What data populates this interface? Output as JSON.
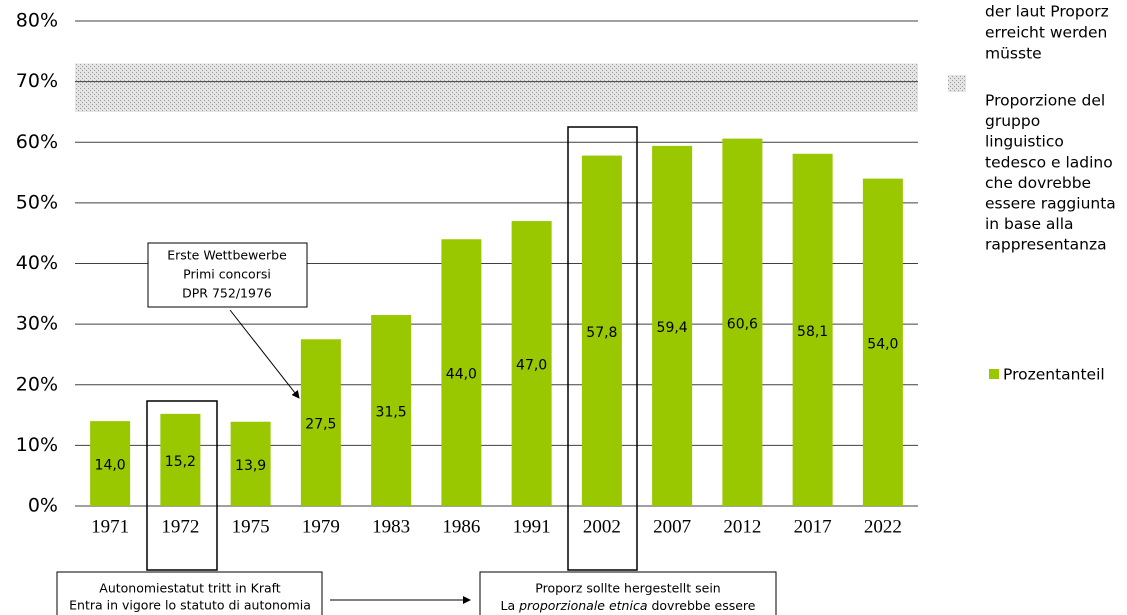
{
  "chart_data": {
    "type": "bar",
    "categories": [
      "1971",
      "1972",
      "1975",
      "1979",
      "1983",
      "1986",
      "1991",
      "2002",
      "2007",
      "2012",
      "2017",
      "2022"
    ],
    "series": [
      {
        "name": "Prozentanteil",
        "color": "#99c800",
        "values": [
          14.0,
          15.2,
          13.9,
          27.5,
          31.5,
          44.0,
          47.0,
          57.8,
          59.4,
          60.6,
          58.1,
          54.0
        ],
        "value_labels": [
          "14,0",
          "15,2",
          "13,9",
          "27,5",
          "31,5",
          "44,0",
          "47,0",
          "57,8",
          "59,4",
          "60,6",
          "58,1",
          "54,0"
        ]
      }
    ],
    "ylim": [
      0,
      80
    ],
    "yticks": [
      {
        "value": 0,
        "label": "0%"
      },
      {
        "value": 10,
        "label": "10%"
      },
      {
        "value": 20,
        "label": "20%"
      },
      {
        "value": 30,
        "label": "30%"
      },
      {
        "value": 40,
        "label": "40%"
      },
      {
        "value": 50,
        "label": "50%"
      },
      {
        "value": 60,
        "label": "60%"
      },
      {
        "value": 70,
        "label": "70%"
      },
      {
        "value": 80,
        "label": "80%"
      }
    ],
    "grid": true,
    "target_band": {
      "range": [
        65,
        73
      ],
      "legend_de": [
        "der laut Proporz",
        "erreicht werden",
        "müsste"
      ],
      "legend_it": [
        "Proporzione del",
        "gruppo",
        "linguistico",
        "tedesco e ladino",
        "che dovrebbe",
        "essere raggiunta",
        "in base alla",
        "rappresentanza"
      ]
    },
    "annotations": {
      "competitions": [
        "Erste Wettbewerbe",
        "Primi concorsi",
        "DPR 752/1976"
      ],
      "statute": [
        "Autonomiestatut tritt in Kraft",
        "Entra in vigore lo statuto di autonomia"
      ],
      "proporz": {
        "line1": "Proporz sollte hergestellt sein",
        "line2": [
          "La ",
          "proporzionale etnica",
          " dovrebbe essere"
        ]
      }
    }
  }
}
